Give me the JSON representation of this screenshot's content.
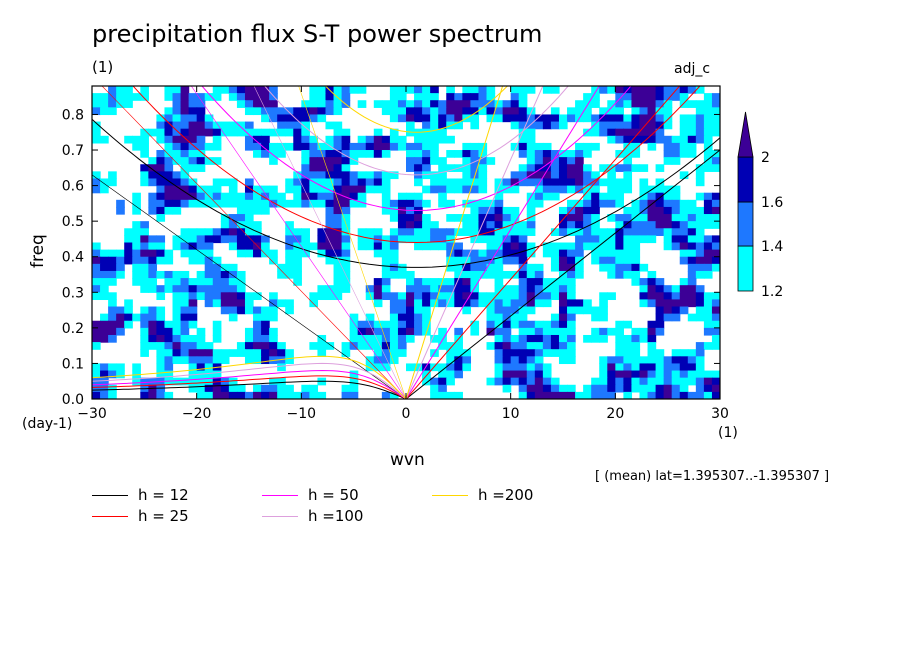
{
  "header": {
    "title": "precipitation flux S-T power spectrum",
    "unit_top": "(1)",
    "tag": "adj_c"
  },
  "footer": {
    "x_unit": "(1)",
    "y_unit": "(day-1)",
    "mean_lat": "[ (mean) lat=1.395307..-1.395307 ]"
  },
  "chart_data": {
    "type": "heatmap",
    "title": "precipitation flux S-T power spectrum",
    "xlabel": "wvn",
    "ylabel": "freq",
    "xlim": [
      -30,
      30
    ],
    "ylim": [
      0,
      0.88
    ],
    "x_ticks": [
      -30,
      -20,
      -10,
      0,
      10,
      20,
      30
    ],
    "x_tick_labels": [
      "−30",
      "−20",
      "−10",
      "0",
      "10",
      "20",
      "30"
    ],
    "y_ticks": [
      0,
      0.1,
      0.2,
      0.3,
      0.4,
      0.5,
      0.6,
      0.7,
      0.8
    ],
    "y_tick_labels": [
      "0.0",
      "0.1",
      "0.2",
      "0.3",
      "0.4",
      "0.5",
      "0.6",
      "0.7",
      "0.8"
    ],
    "contour_levels": [
      1.2,
      1.4,
      1.6,
      2
    ],
    "colorbar_labels": [
      "1.2",
      "1.4",
      "1.6",
      "2"
    ],
    "colorbar_colors": [
      "#00ffff",
      "#1e78ff",
      "#0000b4",
      "#3c0096"
    ],
    "grid": false,
    "legend_placement": "bottom",
    "dispersion_curves": [
      {
        "name": "h = 12",
        "color": "#000000",
        "kelvin_end_freq": 0.7,
        "ig_min_freq": 0.37,
        "ig_edge_freq": 0.76,
        "rossby_peak_freq": 0.05
      },
      {
        "name": "h = 25",
        "color": "#ff0000",
        "kelvin_end_freq": 1.01,
        "ig_min_freq": 0.44,
        "ig_edge_freq": 0.98,
        "rossby_peak_freq": 0.065
      },
      {
        "name": "h = 50",
        "color": "#ff00ff",
        "kelvin_end_freq": 1.43,
        "ig_min_freq": 0.53,
        "ig_edge_freq": 1.28,
        "rossby_peak_freq": 0.08
      },
      {
        "name": "h =100",
        "color": "#dda0dd",
        "kelvin_end_freq": 2.02,
        "ig_min_freq": 0.63,
        "ig_edge_freq": 1.7,
        "rossby_peak_freq": 0.1
      },
      {
        "name": "h =200",
        "color": "#ffd700",
        "kelvin_end_freq": 2.86,
        "ig_min_freq": 0.75,
        "ig_edge_freq": 2.3,
        "rossby_peak_freq": 0.12
      }
    ]
  }
}
